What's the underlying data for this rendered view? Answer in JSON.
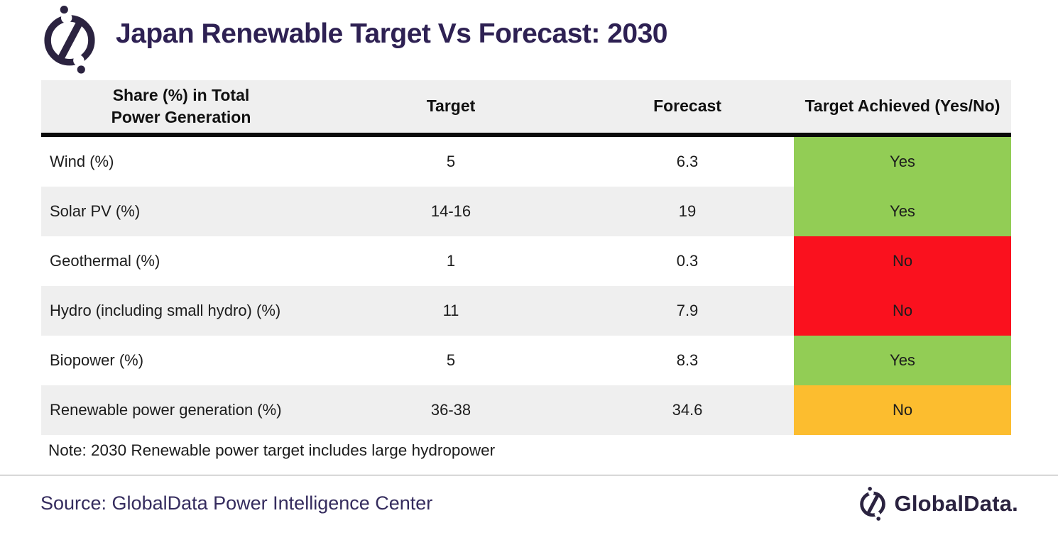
{
  "header": {
    "title": "Japan Renewable Target Vs Forecast: 2030",
    "logo_icon": "globaldata-circle-slash"
  },
  "table": {
    "col_headers": {
      "category_line1": "Share (%) in Total",
      "category_line2": "Power Generation",
      "target": "Target",
      "forecast": "Forecast",
      "achieved": "Target Achieved (Yes/No)"
    },
    "rows": [
      {
        "category": "Wind (%)",
        "target": "5",
        "forecast": "6.3",
        "achieved": "Yes",
        "status": "green"
      },
      {
        "category": "Solar PV (%)",
        "target": "14-16",
        "forecast": "19",
        "achieved": "Yes",
        "status": "green"
      },
      {
        "category": "Geothermal (%)",
        "target": "1",
        "forecast": "0.3",
        "achieved": "No",
        "status": "red"
      },
      {
        "category": "Hydro (including small hydro) (%)",
        "target": "11",
        "forecast": "7.9",
        "achieved": "No",
        "status": "red"
      },
      {
        "category": "Biopower (%)",
        "target": "5",
        "forecast": "8.3",
        "achieved": "Yes",
        "status": "green"
      },
      {
        "category": "Renewable power generation (%)",
        "target": "36-38",
        "forecast": "34.6",
        "achieved": "No",
        "status": "orange"
      }
    ]
  },
  "note": "Note: 2030 Renewable power target includes large hydropower",
  "footer": {
    "source": "Source: GlobalData Power Intelligence Center",
    "brand": "GlobalData."
  },
  "colors": {
    "green": "#92CD55",
    "red": "#FA111E",
    "orange": "#FCBD2F",
    "header_row_bg": "#EFEFEF",
    "alt_row_bg": "#EFEFEF",
    "header_rule": "#0A0A0A",
    "title_text": "#2E2153",
    "source_text": "#352C5E",
    "brand_navy": "#2B2340"
  },
  "chart_data": {
    "type": "table",
    "title": "Japan Renewable Target Vs Forecast: 2030",
    "columns": [
      "Share (%) in Total Power Generation",
      "Target",
      "Forecast",
      "Target Achieved (Yes/No)"
    ],
    "rows": [
      [
        "Wind (%)",
        "5",
        "6.3",
        "Yes"
      ],
      [
        "Solar PV (%)",
        "14-16",
        "19",
        "Yes"
      ],
      [
        "Geothermal (%)",
        "1",
        "0.3",
        "No"
      ],
      [
        "Hydro (including small hydro) (%)",
        "11",
        "7.9",
        "No"
      ],
      [
        "Biopower (%)",
        "5",
        "8.3",
        "Yes"
      ],
      [
        "Renewable power generation (%)",
        "36-38",
        "34.6",
        "No"
      ]
    ],
    "achieved_cell_colors": [
      "#92CD55",
      "#92CD55",
      "#FA111E",
      "#FA111E",
      "#92CD55",
      "#FCBD2F"
    ],
    "note": "Note: 2030 Renewable power target includes large hydropower",
    "source": "Source: GlobalData Power Intelligence Center"
  }
}
